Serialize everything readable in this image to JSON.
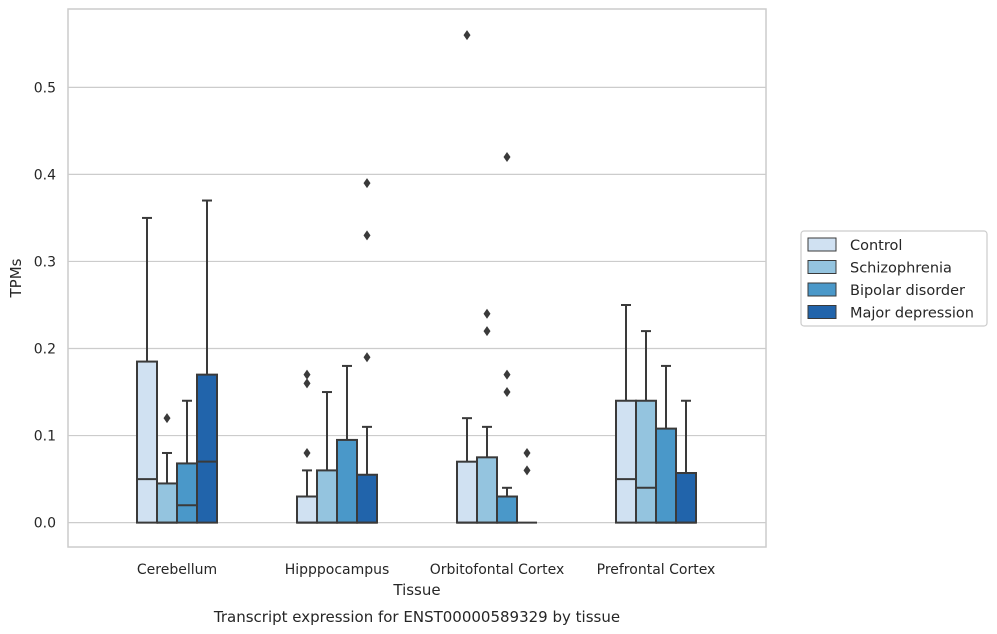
{
  "chart_data": {
    "type": "box",
    "ylabel": "TPMs",
    "xlabel": "Tissue",
    "caption": "Transcript expression for ENST00000589329 by tissue",
    "ylim": [
      -0.028,
      0.59
    ],
    "yticks": [
      0.0,
      0.1,
      0.2,
      0.3,
      0.4,
      0.5
    ],
    "ytick_labels": [
      "0.0",
      "0.1",
      "0.2",
      "0.3",
      "0.4",
      "0.5"
    ],
    "grid": true,
    "legend_position": "right",
    "categories": [
      "Cerebellum",
      "Hipppocampus",
      "Orbitofontal Cortex",
      "Prefrontal Cortex"
    ],
    "series": [
      {
        "name": "Control",
        "color": "#d0e1f2",
        "boxes": [
          {
            "q1": 0.0,
            "median": 0.05,
            "q3": 0.185,
            "whisker_low": 0.0,
            "whisker_high": 0.35,
            "outliers": []
          },
          {
            "q1": 0.0,
            "median": 0.0,
            "q3": 0.03,
            "whisker_low": 0.0,
            "whisker_high": 0.06,
            "outliers": [
              0.08,
              0.16,
              0.17
            ]
          },
          {
            "q1": 0.0,
            "median": 0.0,
            "q3": 0.07,
            "whisker_low": 0.0,
            "whisker_high": 0.12,
            "outliers": [
              0.56
            ]
          },
          {
            "q1": 0.0,
            "median": 0.05,
            "q3": 0.14,
            "whisker_low": 0.0,
            "whisker_high": 0.25,
            "outliers": []
          }
        ]
      },
      {
        "name": "Schizophrenia",
        "color": "#94c4df",
        "boxes": [
          {
            "q1": 0.0,
            "median": 0.0,
            "q3": 0.045,
            "whisker_low": 0.0,
            "whisker_high": 0.08,
            "outliers": [
              0.12
            ]
          },
          {
            "q1": 0.0,
            "median": 0.0,
            "q3": 0.06,
            "whisker_low": 0.0,
            "whisker_high": 0.15,
            "outliers": []
          },
          {
            "q1": 0.0,
            "median": 0.0,
            "q3": 0.075,
            "whisker_low": 0.0,
            "whisker_high": 0.11,
            "outliers": [
              0.22,
              0.24
            ]
          },
          {
            "q1": 0.0,
            "median": 0.04,
            "q3": 0.14,
            "whisker_low": 0.0,
            "whisker_high": 0.22,
            "outliers": []
          }
        ]
      },
      {
        "name": "Bipolar disorder",
        "color": "#4a98c9",
        "boxes": [
          {
            "q1": 0.0,
            "median": 0.02,
            "q3": 0.068,
            "whisker_low": 0.0,
            "whisker_high": 0.14,
            "outliers": []
          },
          {
            "q1": 0.0,
            "median": 0.0,
            "q3": 0.095,
            "whisker_low": 0.0,
            "whisker_high": 0.18,
            "outliers": []
          },
          {
            "q1": 0.0,
            "median": 0.0,
            "q3": 0.03,
            "whisker_low": 0.0,
            "whisker_high": 0.04,
            "outliers": [
              0.15,
              0.17,
              0.42
            ]
          },
          {
            "q1": 0.0,
            "median": 0.0,
            "q3": 0.108,
            "whisker_low": 0.0,
            "whisker_high": 0.18,
            "outliers": []
          }
        ]
      },
      {
        "name": "Major depression",
        "color": "#2164ab",
        "boxes": [
          {
            "q1": 0.0,
            "median": 0.07,
            "q3": 0.17,
            "whisker_low": 0.0,
            "whisker_high": 0.37,
            "outliers": []
          },
          {
            "q1": 0.0,
            "median": 0.0,
            "q3": 0.055,
            "whisker_low": 0.0,
            "whisker_high": 0.11,
            "outliers": [
              0.19,
              0.33,
              0.39
            ]
          },
          {
            "q1": 0.0,
            "median": 0.0,
            "q3": 0.0,
            "whisker_low": 0.0,
            "whisker_high": 0.0,
            "outliers": [
              0.06,
              0.08
            ]
          },
          {
            "q1": 0.0,
            "median": 0.0,
            "q3": 0.057,
            "whisker_low": 0.0,
            "whisker_high": 0.14,
            "outliers": []
          }
        ]
      }
    ],
    "style": {
      "edge_color": "#3a3a3a",
      "grid_color": "#cccccc",
      "frame_color": "#cccccc"
    }
  }
}
